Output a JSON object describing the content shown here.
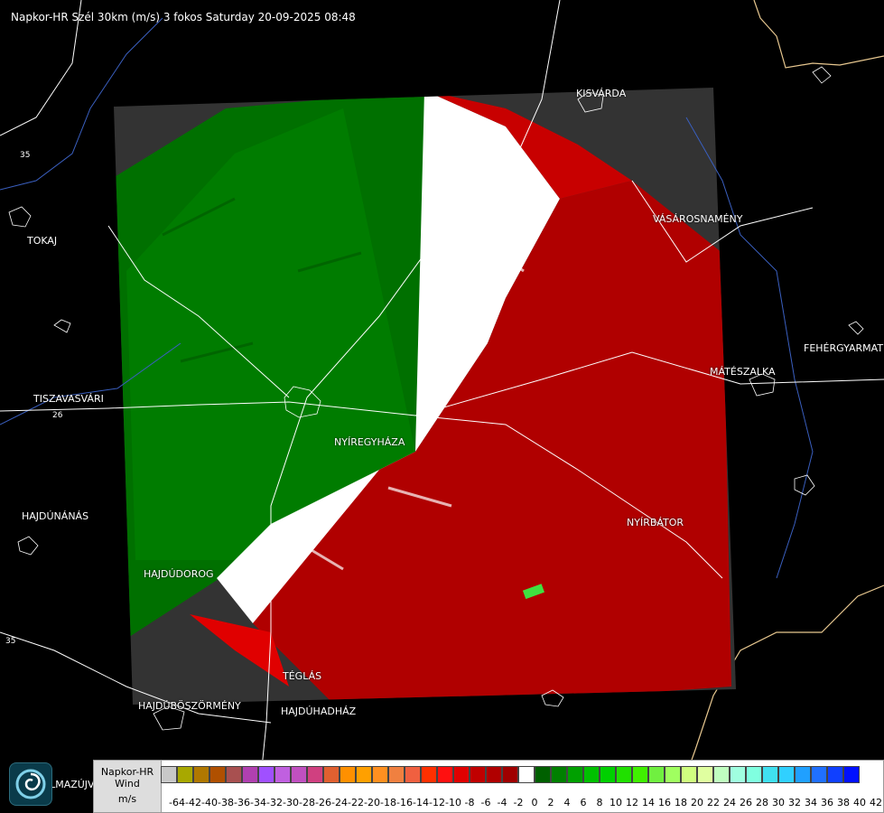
{
  "title": "Napkor-HR Szél 30km (m/s) 3 fokos Saturday 20-09-2025 08:48",
  "cities": [
    {
      "name": "KISVÁRDA"
    },
    {
      "name": "TOKAJ"
    },
    {
      "name": "VÁSÁROSNAMÉNY"
    },
    {
      "name": "FEHÉRGYARMAT"
    },
    {
      "name": "MÁTÉSZALKA"
    },
    {
      "name": "TISZAVASVÁRI"
    },
    {
      "name": "NYÍREGYHÁZA"
    },
    {
      "name": "HAJDÚNÁNÁS"
    },
    {
      "name": "NYÍRBÁTOR"
    },
    {
      "name": "HAJDÚDOROG"
    },
    {
      "name": "TÉGLÁS"
    },
    {
      "name": "HAJDÚBÖSZÖRMÉNY"
    },
    {
      "name": "HAJDÚHADHÁZ"
    },
    {
      "name": "BALMAZÚJVÁROS"
    }
  ],
  "road_labels": [
    "35",
    "26",
    "35"
  ],
  "legend": {
    "line1": "Napkor-HR",
    "line2": "Wind",
    "line3": "m/s",
    "ticks": [
      "-64",
      "-42",
      "-40",
      "-38",
      "-36",
      "-34",
      "-32",
      "-30",
      "-28",
      "-26",
      "-24",
      "-22",
      "-20",
      "-18",
      "-16",
      "-14",
      "-12",
      "-10",
      "-8",
      "-6",
      "-4",
      "-2",
      "0",
      "2",
      "4",
      "6",
      "8",
      "10",
      "12",
      "14",
      "16",
      "18",
      "20",
      "22",
      "24",
      "26",
      "28",
      "30",
      "32",
      "34",
      "36",
      "38",
      "40",
      "42"
    ],
    "colors": [
      "#c8c8c8",
      "#a8a800",
      "#b07800",
      "#b05000",
      "#a85050",
      "#b040b0",
      "#a050ff",
      "#c060e0",
      "#c050c0",
      "#d04080",
      "#e06030",
      "#ff9000",
      "#ffa000",
      "#ff9020",
      "#f08040",
      "#f06040",
      "#ff3000",
      "#ff1010",
      "#e00000",
      "#c00000",
      "#b00000",
      "#a00000",
      "#ffffff",
      "#006000",
      "#008000",
      "#00a000",
      "#00c000",
      "#00d000",
      "#20e000",
      "#40f000",
      "#70f040",
      "#a0ff60",
      "#d0ff80",
      "#e0ffa0",
      "#c0ffc0",
      "#a0ffe0",
      "#80ffe0",
      "#40e0f0",
      "#30d0ff",
      "#20a0ff",
      "#2070ff",
      "#1040ff",
      "#0010ff"
    ]
  },
  "logo": {
    "icon": "storm-swirl-icon"
  }
}
